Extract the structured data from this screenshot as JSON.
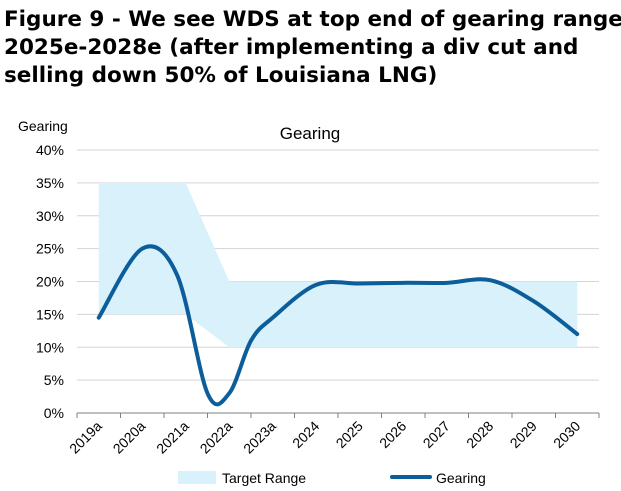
{
  "figure": {
    "title_lines": [
      "Figure 9 - We see WDS at top end of gearing range",
      "2025e-2028e (after implementing a div cut and",
      "selling down 50% of Louisiana LNG)"
    ]
  },
  "chart_data": {
    "type": "line",
    "title": "Gearing",
    "ylabel": "Gearing",
    "xlabel": "",
    "categories": [
      "2019a",
      "2020a",
      "2021a",
      "2022a",
      "2023a",
      "2024",
      "2025",
      "2026",
      "2027",
      "2028",
      "2029",
      "2030"
    ],
    "ylim": [
      0,
      40
    ],
    "yticks": [
      0,
      5,
      10,
      15,
      20,
      25,
      30,
      35,
      40
    ],
    "ytick_labels": [
      "0%",
      "5%",
      "10%",
      "15%",
      "20%",
      "25%",
      "30%",
      "35%",
      "40%"
    ],
    "grid": true,
    "legend_position": "bottom",
    "series": [
      {
        "name": "Target Range",
        "kind": "band",
        "color": "#d9f1fb",
        "points": [
          {
            "x": 0,
            "low": 15,
            "high": 35
          },
          {
            "x": 2,
            "low": 15,
            "high": 35
          },
          {
            "x": 3,
            "low": 10,
            "high": 20
          },
          {
            "x": 11,
            "low": 10,
            "high": 20
          }
        ]
      },
      {
        "name": "Gearing",
        "kind": "line",
        "color": "#0b5e9a",
        "points": [
          {
            "x": 0,
            "y": 14.5
          },
          {
            "x": 1,
            "y": 25
          },
          {
            "x": 1.8,
            "y": 21
          },
          {
            "x": 2.5,
            "y": 3
          },
          {
            "x": 3,
            "y": 3
          },
          {
            "x": 3.5,
            "y": 11
          },
          {
            "x": 4,
            "y": 14.5
          },
          {
            "x": 5,
            "y": 19.5
          },
          {
            "x": 6,
            "y": 19.7
          },
          {
            "x": 7,
            "y": 19.8
          },
          {
            "x": 8,
            "y": 19.8
          },
          {
            "x": 9,
            "y": 20.2
          },
          {
            "x": 10,
            "y": 17
          },
          {
            "x": 11,
            "y": 12
          }
        ]
      }
    ]
  }
}
